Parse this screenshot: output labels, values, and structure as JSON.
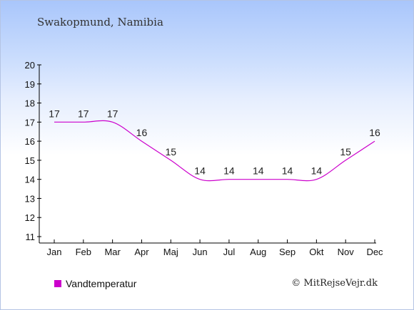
{
  "title": "Swakopmund, Namibia",
  "legend": {
    "label": "Vandtemperatur",
    "color": "#cc00cc"
  },
  "copyright": "© MitRejseVejr.dk",
  "chart_data": {
    "type": "line",
    "title": "Swakopmund, Namibia",
    "xlabel": "",
    "ylabel": "",
    "categories": [
      "Jan",
      "Feb",
      "Mar",
      "Apr",
      "Maj",
      "Jun",
      "Jul",
      "Aug",
      "Sep",
      "Okt",
      "Nov",
      "Dec"
    ],
    "yticks": [
      11,
      12,
      13,
      14,
      15,
      16,
      17,
      18,
      19,
      20
    ],
    "ylim": [
      11,
      20
    ],
    "series": [
      {
        "name": "Vandtemperatur",
        "color": "#cc00cc",
        "values": [
          17,
          17,
          17,
          16,
          15,
          14,
          14,
          14,
          14,
          14,
          15,
          16
        ]
      }
    ],
    "grid": false,
    "legend_position": "bottom-left"
  }
}
